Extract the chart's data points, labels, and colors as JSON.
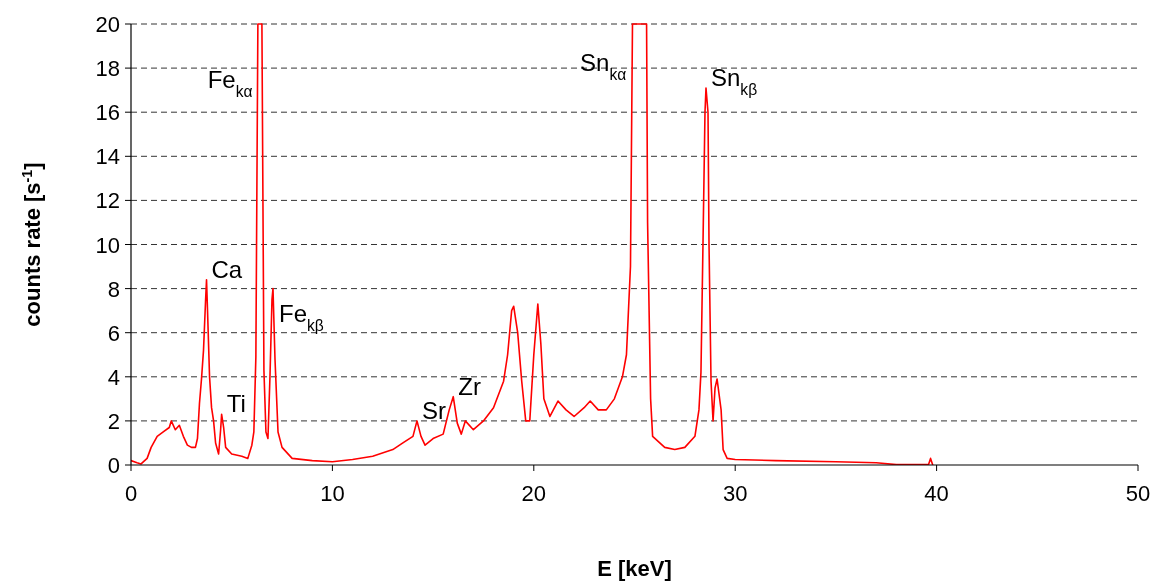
{
  "chart_data": {
    "type": "line",
    "xlabel": "E [keV]",
    "ylabel": "counts rate [s$^{-1}$]",
    "xlim": [
      0,
      50
    ],
    "xticks": [
      0,
      10,
      20,
      30,
      40,
      50
    ],
    "ylim": [
      0,
      20
    ],
    "yticks": [
      0,
      2,
      4,
      6,
      8,
      10,
      12,
      14,
      16,
      18,
      20
    ],
    "grid": "y",
    "line_style": "solid",
    "series": [
      {
        "color": "#ff0000",
        "x": [
          0,
          0.3,
          0.5,
          0.8,
          1.0,
          1.3,
          1.6,
          1.9,
          2.0,
          2.2,
          2.4,
          2.6,
          2.8,
          3.0,
          3.2,
          3.3,
          3.4,
          3.5,
          3.6,
          3.7,
          3.75,
          3.8,
          3.9,
          4.0,
          4.1,
          4.2,
          4.35,
          4.45,
          4.5,
          4.6,
          4.7,
          5.0,
          5.5,
          5.8,
          6.0,
          6.1,
          6.2,
          6.3,
          6.5,
          6.6,
          6.7,
          6.8,
          6.9,
          7.0,
          7.05,
          7.15,
          7.3,
          7.5,
          8,
          9,
          10,
          11,
          12,
          13,
          13.5,
          14.0,
          14.2,
          14.4,
          14.6,
          15.0,
          15.5,
          15.8,
          16.0,
          16.2,
          16.4,
          16.6,
          17,
          17.5,
          18,
          18.5,
          18.7,
          18.9,
          19.0,
          19.2,
          19.4,
          19.6,
          19.8,
          20.0,
          20.2,
          20.35,
          20.5,
          20.8,
          21.2,
          21.6,
          22,
          22.5,
          22.8,
          23.2,
          23.6,
          24.0,
          24.4,
          24.6,
          24.8,
          24.9,
          25.6,
          25.65,
          25.8,
          25.9,
          26.5,
          27,
          27.5,
          28.0,
          28.2,
          28.3,
          28.4,
          28.5,
          28.55,
          28.65,
          28.7,
          28.8,
          28.9,
          29.0,
          29.1,
          29.3,
          29.4,
          29.6,
          30,
          32,
          35,
          37,
          38,
          39.6,
          39.7,
          39.8
        ],
        "values": [
          0.2,
          0.1,
          0.05,
          0.3,
          0.8,
          1.3,
          1.5,
          1.7,
          2.0,
          1.6,
          1.8,
          1.3,
          0.9,
          0.8,
          0.8,
          1.2,
          2.8,
          3.9,
          5.2,
          7.4,
          8.4,
          7.0,
          4.0,
          2.6,
          2.0,
          1.0,
          0.5,
          1.6,
          2.3,
          1.7,
          0.8,
          0.5,
          0.4,
          0.3,
          0.9,
          1.5,
          4.9,
          20,
          20,
          4.3,
          1.5,
          1.2,
          4.0,
          7.5,
          8.0,
          4.8,
          1.5,
          0.8,
          0.3,
          0.2,
          0.15,
          0.25,
          0.4,
          0.7,
          1.0,
          1.3,
          2.0,
          1.3,
          0.9,
          1.2,
          1.4,
          2.5,
          3.1,
          1.9,
          1.4,
          2.0,
          1.6,
          2.0,
          2.6,
          3.8,
          5.0,
          7.0,
          7.2,
          6.0,
          3.8,
          2.0,
          2.0,
          5.0,
          7.3,
          5.5,
          3.0,
          2.2,
          2.9,
          2.5,
          2.2,
          2.6,
          2.9,
          2.5,
          2.5,
          3.0,
          4.0,
          5.0,
          9.0,
          20,
          20,
          11,
          3.0,
          1.3,
          0.8,
          0.7,
          0.8,
          1.3,
          2.5,
          4.2,
          10,
          16,
          17.1,
          16,
          10,
          3.8,
          2.0,
          3.5,
          3.9,
          2.5,
          0.7,
          0.3,
          0.25,
          0.2,
          0.15,
          0.1,
          0.02,
          0.02,
          0.3,
          0.02
        ]
      }
    ],
    "annotations": [
      {
        "text": "Fe$_{kα}$",
        "x": 6.28,
        "y": 17
      },
      {
        "text": "Ca",
        "x": 3.75,
        "y": 8.4
      },
      {
        "text": "Ti",
        "x": 4.5,
        "y": 2.3
      },
      {
        "text": "Fe$_{kβ}$",
        "x": 7.1,
        "y": 6.4
      },
      {
        "text": "Sr",
        "x": 14.2,
        "y": 2.0
      },
      {
        "text": "Zr",
        "x": 16.0,
        "y": 3.1
      },
      {
        "text": "Sn$_{kα}$",
        "x": 24.84,
        "y": 17.8
      },
      {
        "text": "Sn$_{kβ}$",
        "x": 28.55,
        "y": 17.1
      }
    ]
  }
}
